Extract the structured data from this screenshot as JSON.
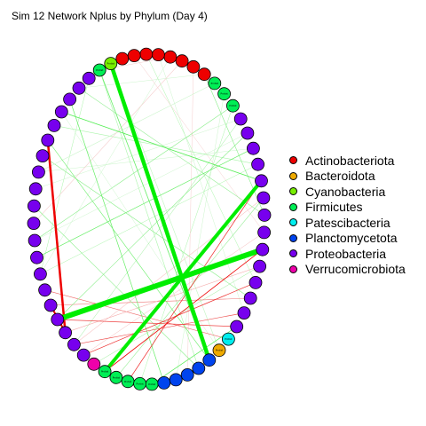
{
  "title": "Sim 12 Network Nplus by Phylum (Day 4)",
  "legend": [
    {
      "label": "Actinobacteriota",
      "color": "#ee0000"
    },
    {
      "label": "Bacteroidota",
      "color": "#eeaa00"
    },
    {
      "label": "Cyanobacteria",
      "color": "#77ee00"
    },
    {
      "label": "Firmicutes",
      "color": "#00ee55"
    },
    {
      "label": "Patescibacteria",
      "color": "#00eeee"
    },
    {
      "label": "Planctomycetota",
      "color": "#0044ee"
    },
    {
      "label": "Proteobacteria",
      "color": "#7700ee"
    },
    {
      "label": "Verrucomicrobiota",
      "color": "#ee00aa"
    }
  ],
  "network": {
    "node_count": 60,
    "node_label": "Protist",
    "node_phyla": [
      "Actinobacteriota",
      "Cyanobacteria",
      "Firmicutes",
      "Proteobacteria",
      "Proteobacteria",
      "Proteobacteria",
      "Proteobacteria",
      "Proteobacteria",
      "Proteobacteria",
      "Proteobacteria",
      "Proteobacteria",
      "Proteobacteria",
      "Proteobacteria",
      "Proteobacteria",
      "Proteobacteria",
      "Proteobacteria",
      "Proteobacteria",
      "Proteobacteria",
      "Proteobacteria",
      "Proteobacteria",
      "Proteobacteria",
      "Proteobacteria",
      "Proteobacteria",
      "Verrucomicrobiota",
      "Firmicutes",
      "Firmicutes",
      "Firmicutes",
      "Firmicutes",
      "Firmicutes",
      "Planctomycetota",
      "Planctomycetota",
      "Planctomycetota",
      "Planctomycetota",
      "Planctomycetota",
      "Bacteroidota",
      "Patescibacteria",
      "Proteobacteria",
      "Proteobacteria",
      "Proteobacteria",
      "Proteobacteria",
      "Proteobacteria",
      "Proteobacteria",
      "Proteobacteria",
      "Proteobacteria",
      "Proteobacteria",
      "Proteobacteria",
      "Proteobacteria",
      "Proteobacteria",
      "Proteobacteria",
      "Proteobacteria",
      "Firmicutes",
      "Firmicutes",
      "Firmicutes",
      "Actinobacteriota",
      "Actinobacteriota",
      "Actinobacteriota",
      "Actinobacteriota",
      "Actinobacteriota",
      "Actinobacteriota",
      "Actinobacteriota"
    ],
    "labeled_nodes": [
      1,
      2,
      24,
      25,
      26,
      27,
      28,
      34,
      35,
      50,
      51,
      52
    ],
    "edges": [
      {
        "source": 1,
        "target": 33,
        "color": "#00ee00",
        "weight": 4.5
      },
      {
        "source": 19,
        "target": 41,
        "color": "#00ee00",
        "weight": 6
      },
      {
        "source": 45,
        "target": 24,
        "color": "#00ee00",
        "weight": 4
      },
      {
        "source": 8,
        "target": 20,
        "color": "#ee0000",
        "weight": 2.5
      },
      {
        "source": 20,
        "target": 18,
        "color": "#ee0000",
        "weight": 2
      },
      {
        "source": 2,
        "target": 33,
        "color": "#66ee66",
        "weight": 0.8
      },
      {
        "source": 2,
        "target": 32,
        "color": "#aaf5aa",
        "weight": 0.6
      },
      {
        "source": 1,
        "target": 34,
        "color": "#bff5bf",
        "weight": 0.6
      },
      {
        "source": 3,
        "target": 16,
        "color": "#aaf5aa",
        "weight": 0.5
      },
      {
        "source": 4,
        "target": 43,
        "color": "#99ee99",
        "weight": 0.6
      },
      {
        "source": 5,
        "target": 29,
        "color": "#66ee66",
        "weight": 0.7
      },
      {
        "source": 6,
        "target": 45,
        "color": "#55ee55",
        "weight": 0.8
      },
      {
        "source": 7,
        "target": 46,
        "color": "#aaf5aa",
        "weight": 0.6
      },
      {
        "source": 9,
        "target": 38,
        "color": "#88ee88",
        "weight": 0.6
      },
      {
        "source": 10,
        "target": 52,
        "color": "#ccf5cc",
        "weight": 0.6
      },
      {
        "source": 11,
        "target": 49,
        "color": "#ccf5cc",
        "weight": 0.5
      },
      {
        "source": 13,
        "target": 55,
        "color": "#f5cccc",
        "weight": 0.6
      },
      {
        "source": 14,
        "target": 50,
        "color": "#88ee88",
        "weight": 0.6
      },
      {
        "source": 15,
        "target": 47,
        "color": "#66ee66",
        "weight": 0.7
      },
      {
        "source": 16,
        "target": 56,
        "color": "#ccf5cc",
        "weight": 0.5
      },
      {
        "source": 17,
        "target": 35,
        "color": "#ee6666",
        "weight": 0.6
      },
      {
        "source": 18,
        "target": 38,
        "color": "#ee7777",
        "weight": 0.6
      },
      {
        "source": 19,
        "target": 36,
        "color": "#ee4444",
        "weight": 0.8
      },
      {
        "source": 19,
        "target": 48,
        "color": "#88ee88",
        "weight": 0.6
      },
      {
        "source": 20,
        "target": 40,
        "color": "#f5aaaa",
        "weight": 0.6
      },
      {
        "source": 21,
        "target": 37,
        "color": "#ee5555",
        "weight": 0.7
      },
      {
        "source": 21,
        "target": 44,
        "color": "#f5aaaa",
        "weight": 0.5
      },
      {
        "source": 22,
        "target": 39,
        "color": "#ee3333",
        "weight": 0.7
      },
      {
        "source": 22,
        "target": 42,
        "color": "#f5bbbb",
        "weight": 0.5
      },
      {
        "source": 23,
        "target": 40,
        "color": "#99ee99",
        "weight": 0.5
      },
      {
        "source": 24,
        "target": 41,
        "color": "#ee0000",
        "weight": 0.8
      },
      {
        "source": 25,
        "target": 44,
        "color": "#99ee99",
        "weight": 0.6
      },
      {
        "source": 26,
        "target": 45,
        "color": "#ee2222",
        "weight": 0.7
      },
      {
        "source": 27,
        "target": 50,
        "color": "#aaf5aa",
        "weight": 0.5
      },
      {
        "source": 28,
        "target": 36,
        "color": "#55ee55",
        "weight": 0.7
      },
      {
        "source": 30,
        "target": 51,
        "color": "#ccf5cc",
        "weight": 0.5
      },
      {
        "source": 31,
        "target": 54,
        "color": "#f5cccc",
        "weight": 0.5
      },
      {
        "source": 32,
        "target": 12,
        "color": "#88ee88",
        "weight": 0.6
      },
      {
        "source": 33,
        "target": 8,
        "color": "#66ee66",
        "weight": 0.6
      },
      {
        "source": 34,
        "target": 6,
        "color": "#ccf5cc",
        "weight": 0.5
      },
      {
        "source": 37,
        "target": 57,
        "color": "#ccf5cc",
        "weight": 0.5
      },
      {
        "source": 39,
        "target": 58,
        "color": "#aaf5aa",
        "weight": 0.5
      },
      {
        "source": 42,
        "target": 59,
        "color": "#f5cccc",
        "weight": 0.5
      },
      {
        "source": 43,
        "target": 53,
        "color": "#88ee88",
        "weight": 0.6
      },
      {
        "source": 46,
        "target": 16,
        "color": "#aaf5aa",
        "weight": 0.5
      },
      {
        "source": 47,
        "target": 10,
        "color": "#ccf5cc",
        "weight": 0.5
      },
      {
        "source": 48,
        "target": 14,
        "color": "#ccf5cc",
        "weight": 0.5
      },
      {
        "source": 49,
        "target": 21,
        "color": "#99ee99",
        "weight": 0.5
      },
      {
        "source": 53,
        "target": 4,
        "color": "#ccf5cc",
        "weight": 0.5
      },
      {
        "source": 56,
        "target": 2,
        "color": "#f5cccc",
        "weight": 0.5
      }
    ]
  }
}
